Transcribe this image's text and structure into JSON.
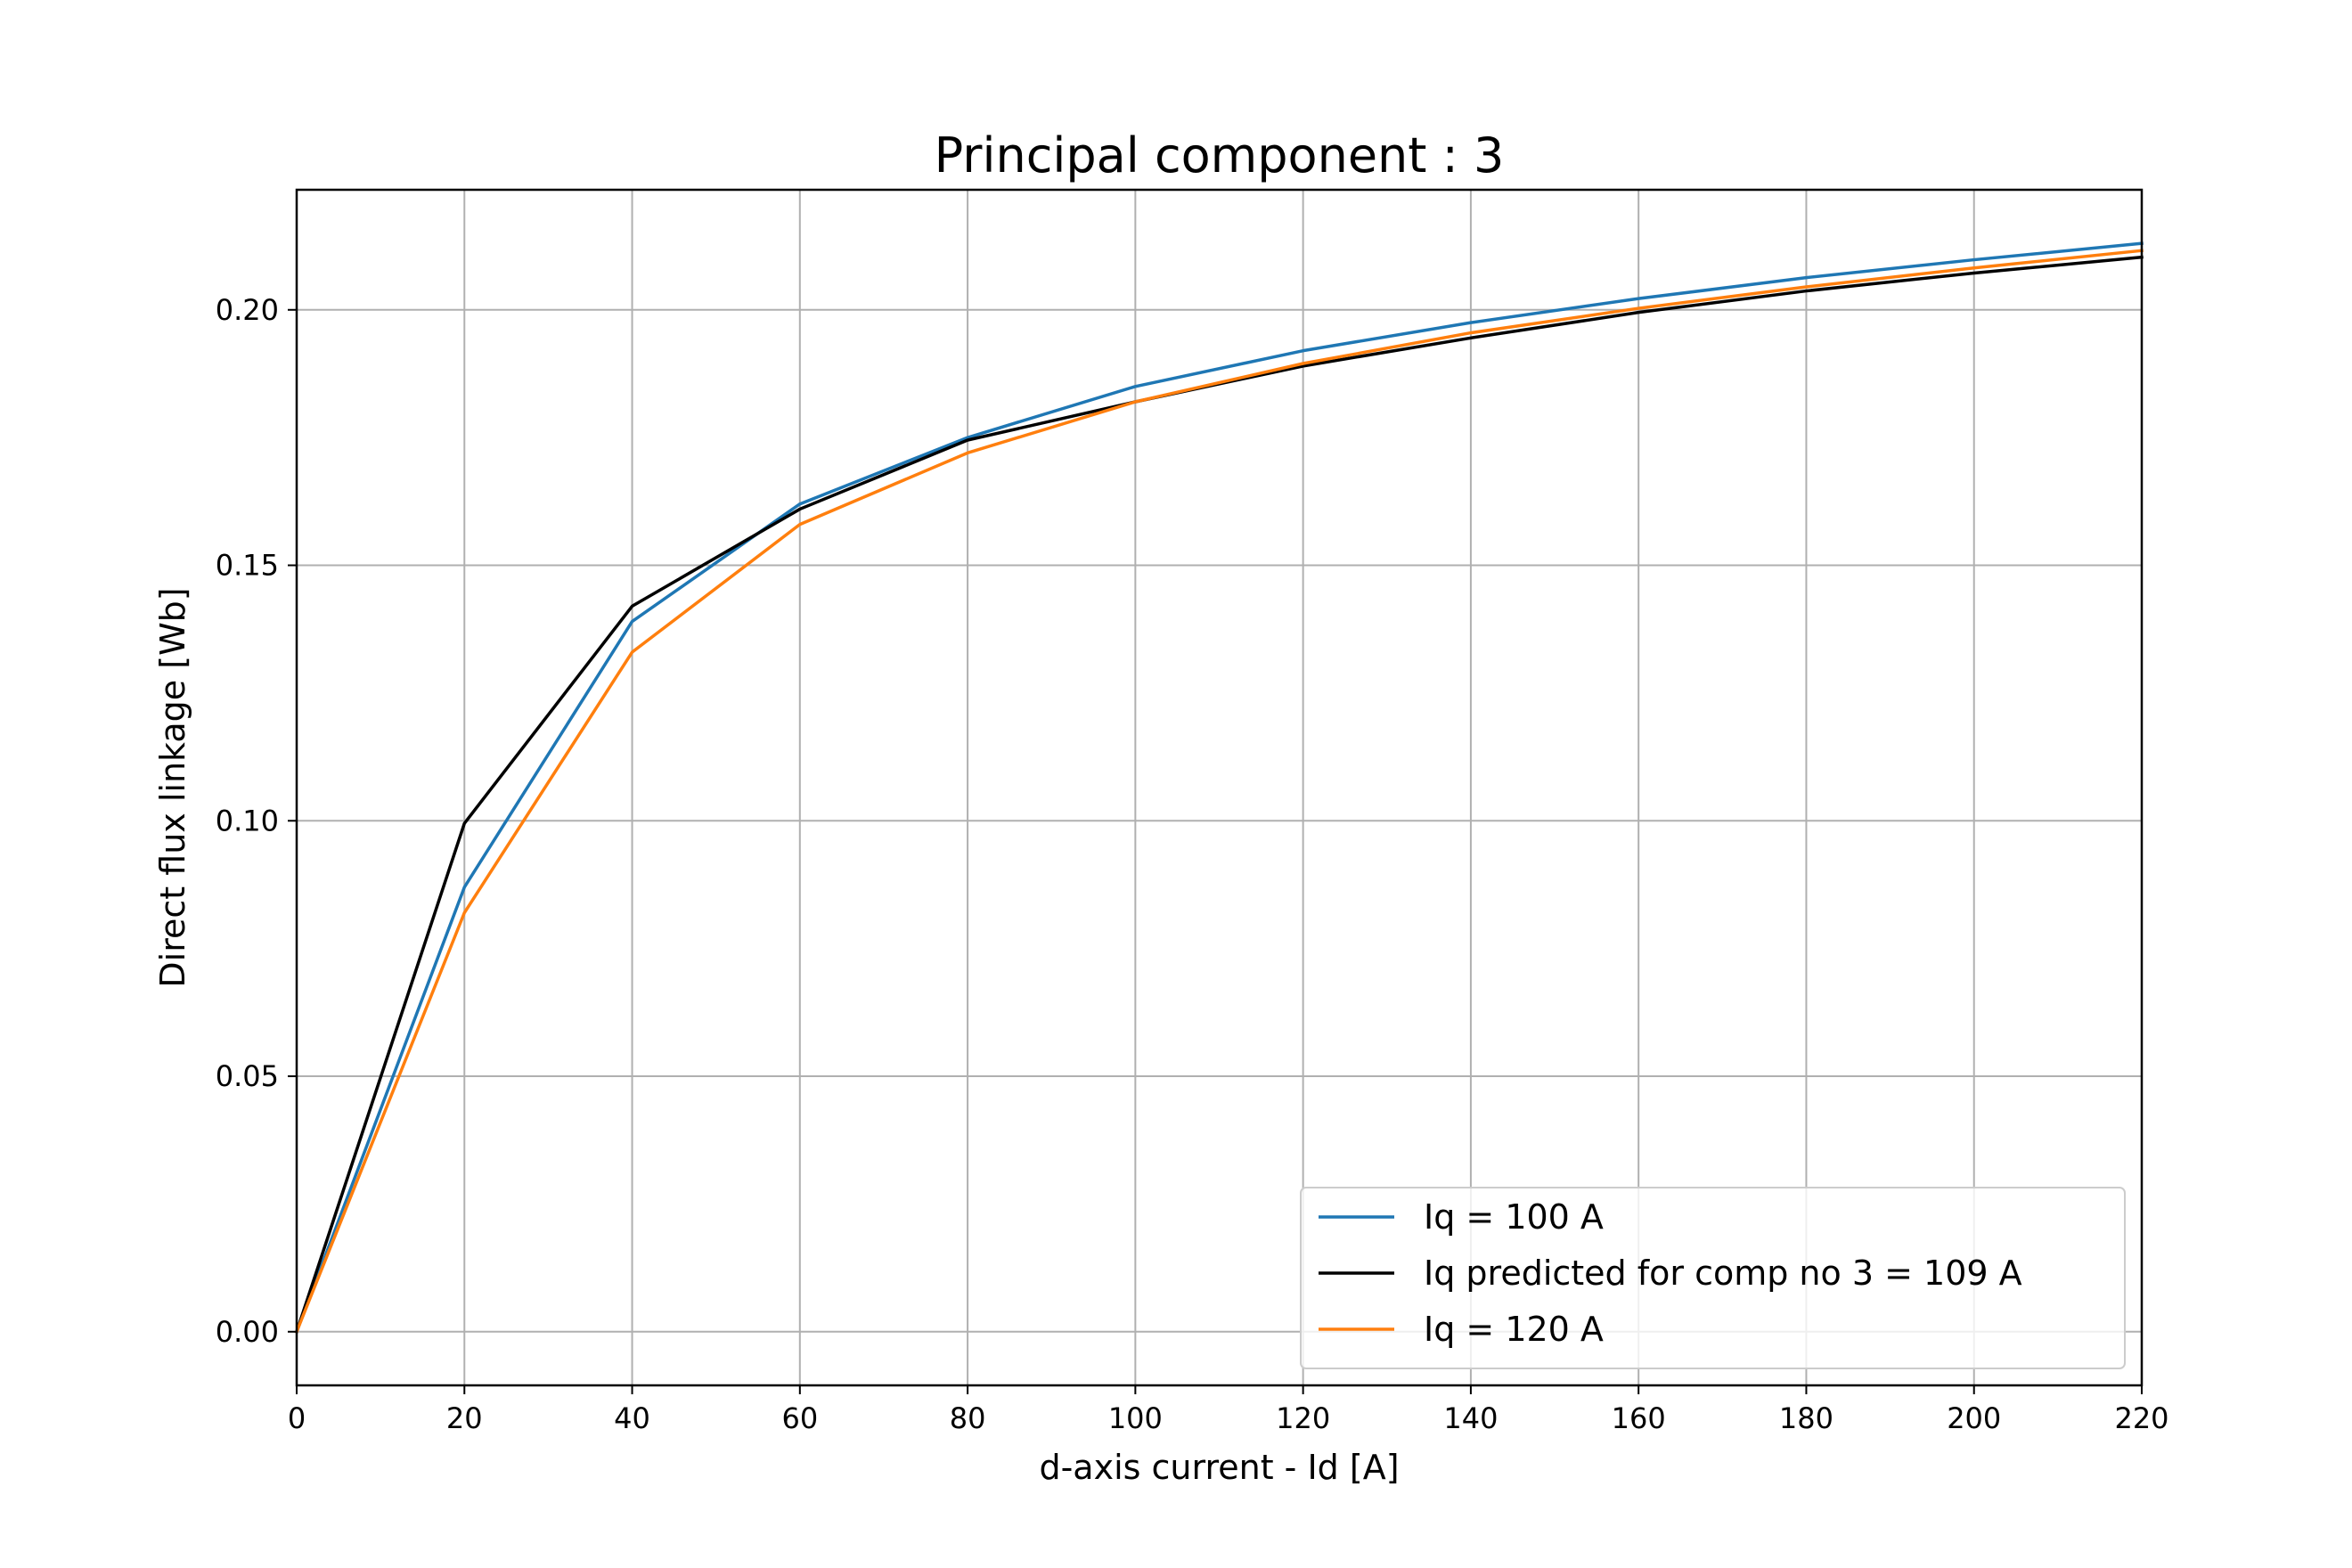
{
  "chart_data": {
    "type": "line",
    "title": "Principal component : 3",
    "xlabel": "d-axis current - Id [A]",
    "ylabel": "Direct flux linkage [Wb]",
    "xlim": [
      0,
      220
    ],
    "ylim": [
      -0.0105,
      0.2235
    ],
    "xticks": [
      0,
      20,
      40,
      60,
      80,
      100,
      120,
      140,
      160,
      180,
      200,
      220
    ],
    "xtick_labels": [
      "0",
      "20",
      "40",
      "60",
      "80",
      "100",
      "120",
      "140",
      "160",
      "180",
      "200",
      "220"
    ],
    "yticks": [
      0.0,
      0.05,
      0.1,
      0.15,
      0.2
    ],
    "ytick_labels": [
      "0.00",
      "0.05",
      "0.10",
      "0.15",
      "0.20"
    ],
    "grid": true,
    "legend_position": "lower-right",
    "x": [
      0,
      20,
      40,
      60,
      80,
      100,
      120,
      140,
      160,
      180,
      200,
      220
    ],
    "series": [
      {
        "name": "Iq = 100 A",
        "color": "#1f77b4",
        "values": [
          0.0,
          0.087,
          0.139,
          0.162,
          0.175,
          0.185,
          0.192,
          0.1975,
          0.2022,
          0.2063,
          0.2098,
          0.213
        ]
      },
      {
        "name": "Iq predicted for comp no 3 = 109 A",
        "color": "#000000",
        "values": [
          0.0,
          0.0995,
          0.142,
          0.161,
          0.1745,
          0.182,
          0.189,
          0.1945,
          0.1995,
          0.2037,
          0.2072,
          0.2103
        ]
      },
      {
        "name": "Iq = 120 A",
        "color": "#ff7f0e",
        "values": [
          0.0,
          0.082,
          0.133,
          0.158,
          0.172,
          0.182,
          0.1895,
          0.1955,
          0.2003,
          0.2045,
          0.2082,
          0.2116
        ]
      }
    ]
  }
}
